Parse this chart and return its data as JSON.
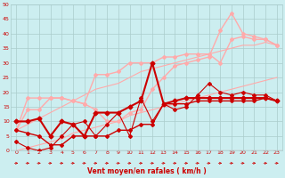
{
  "background_color": "#cceef0",
  "grid_color": "#aacccc",
  "xlabel": "Vent moyen/en rafales ( km/h )",
  "xlabel_color": "#cc0000",
  "tick_color": "#cc0000",
  "xlim": [
    -0.5,
    23.5
  ],
  "ylim": [
    0,
    50
  ],
  "yticks": [
    0,
    5,
    10,
    15,
    20,
    25,
    30,
    35,
    40,
    45,
    50
  ],
  "xticks": [
    0,
    1,
    2,
    3,
    4,
    5,
    6,
    7,
    8,
    9,
    10,
    11,
    12,
    13,
    14,
    15,
    16,
    17,
    18,
    19,
    20,
    21,
    22,
    23
  ],
  "x": [
    0,
    1,
    2,
    3,
    4,
    5,
    6,
    7,
    8,
    9,
    10,
    11,
    12,
    13,
    14,
    15,
    16,
    17,
    18,
    19,
    20,
    21,
    22,
    23
  ],
  "lines": [
    {
      "y": [
        7,
        9,
        11,
        13,
        15,
        17,
        19,
        21,
        22,
        23,
        25,
        27,
        28,
        29,
        30,
        31,
        32,
        33,
        34,
        35,
        36,
        36,
        37,
        36
      ],
      "color": "#ffaaaa",
      "linewidth": 0.8,
      "marker": null,
      "markersize": 0,
      "zorder": 2
    },
    {
      "y": [
        0,
        1,
        2,
        3,
        4,
        6,
        7,
        8,
        9,
        10,
        12,
        13,
        14,
        15,
        16,
        17,
        18,
        19,
        20,
        21,
        22,
        23,
        24,
        25
      ],
      "color": "#ffaaaa",
      "linewidth": 0.8,
      "marker": null,
      "markersize": 0,
      "zorder": 2
    },
    {
      "y": [
        7,
        14,
        14,
        18,
        18,
        17,
        16,
        14,
        10,
        10,
        13,
        14,
        21,
        25,
        29,
        30,
        31,
        32,
        41,
        47,
        40,
        39,
        38,
        36
      ],
      "color": "#ffaaaa",
      "linewidth": 1.0,
      "marker": "D",
      "markersize": 2.0,
      "zorder": 3
    },
    {
      "y": [
        7,
        18,
        18,
        18,
        18,
        17,
        16,
        26,
        26,
        27,
        30,
        30,
        30,
        32,
        32,
        33,
        33,
        33,
        30,
        38,
        39,
        38,
        38,
        36
      ],
      "color": "#ffaaaa",
      "linewidth": 1.0,
      "marker": "D",
      "markersize": 2.0,
      "zorder": 3
    },
    {
      "y": [
        10,
        10,
        11,
        5,
        10,
        9,
        5,
        13,
        13,
        13,
        15,
        17,
        30,
        16,
        17,
        18,
        18,
        18,
        18,
        18,
        18,
        18,
        18,
        17
      ],
      "color": "#cc0000",
      "linewidth": 1.5,
      "marker": "D",
      "markersize": 2.5,
      "zorder": 6
    },
    {
      "y": [
        7,
        6,
        5,
        2,
        2,
        5,
        5,
        5,
        5,
        7,
        7,
        9,
        9,
        16,
        16,
        16,
        17,
        17,
        17,
        17,
        17,
        17,
        18,
        17
      ],
      "color": "#cc0000",
      "linewidth": 1.0,
      "marker": "D",
      "markersize": 2.0,
      "zorder": 5
    },
    {
      "y": [
        3,
        1,
        0,
        1,
        5,
        9,
        10,
        5,
        9,
        13,
        5,
        18,
        10,
        16,
        14,
        15,
        19,
        23,
        20,
        19,
        20,
        19,
        19,
        17
      ],
      "color": "#cc0000",
      "linewidth": 0.8,
      "marker": "D",
      "markersize": 2.0,
      "zorder": 4
    }
  ]
}
